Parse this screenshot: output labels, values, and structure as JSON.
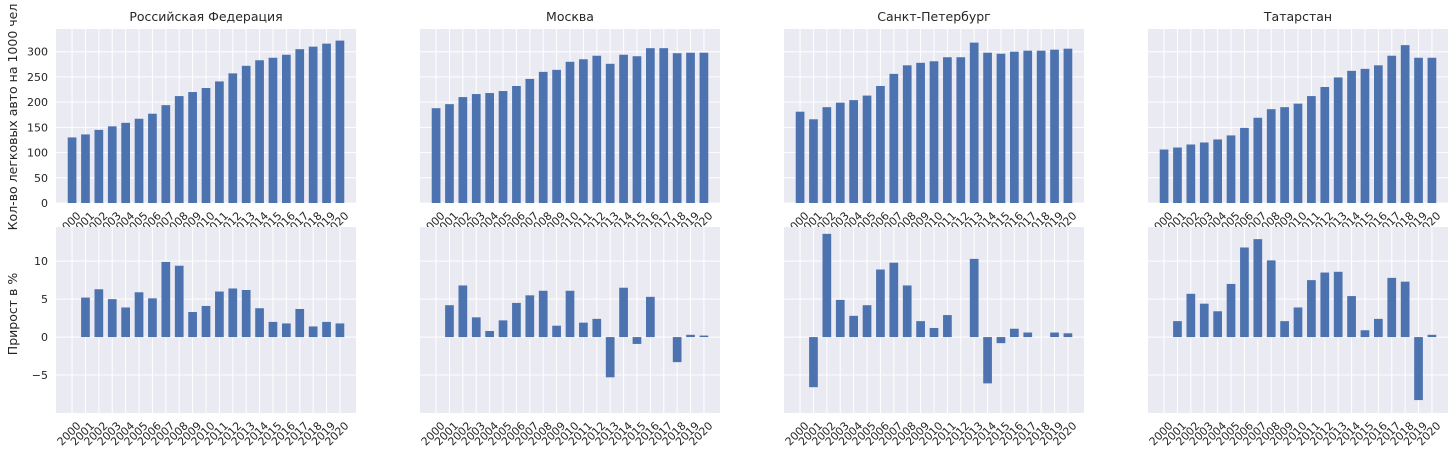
{
  "figure": {
    "ylabel_top": "Кол-во легковых авто на 1000 чел",
    "ylabel_bottom": "Прирост в %",
    "bar_color": "#4c72b0",
    "axes_bg": "#eaeaf2",
    "grid_color": "#ffffff"
  },
  "chart_data": [
    {
      "type": "bar",
      "title": "Российская Федерация",
      "categories": [
        "2000",
        "2001",
        "2002",
        "2003",
        "2004",
        "2005",
        "2006",
        "2007",
        "2008",
        "2009",
        "2010",
        "2011",
        "2012",
        "2013",
        "2014",
        "2015",
        "2016",
        "2017",
        "2018",
        "2019",
        "2020"
      ],
      "values": [
        130,
        136,
        145,
        152,
        159,
        167,
        177,
        194,
        212,
        220,
        228,
        241,
        257,
        272,
        283,
        288,
        294,
        305,
        310,
        316,
        322
      ],
      "ylim": [
        0,
        345
      ],
      "yticks": [
        0,
        50,
        100,
        150,
        200,
        250,
        300
      ]
    },
    {
      "type": "bar",
      "title": "Москва",
      "categories": [
        "2000",
        "2001",
        "2002",
        "2003",
        "2004",
        "2005",
        "2006",
        "2007",
        "2008",
        "2009",
        "2010",
        "2011",
        "2012",
        "2013",
        "2014",
        "2015",
        "2016",
        "2017",
        "2018",
        "2019",
        "2020"
      ],
      "values": [
        188,
        196,
        210,
        216,
        218,
        222,
        232,
        246,
        260,
        264,
        280,
        285,
        292,
        276,
        294,
        291,
        307,
        307,
        297,
        298,
        298
      ],
      "ylim": [
        0,
        345
      ],
      "yticks": [
        0,
        50,
        100,
        150,
        200,
        250,
        300
      ]
    },
    {
      "type": "bar",
      "title": "Санкт-Петербург",
      "categories": [
        "2000",
        "2001",
        "2002",
        "2003",
        "2004",
        "2005",
        "2006",
        "2007",
        "2008",
        "2009",
        "2010",
        "2011",
        "2012",
        "2013",
        "2014",
        "2015",
        "2016",
        "2017",
        "2018",
        "2019",
        "2020"
      ],
      "values": [
        181,
        166,
        190,
        199,
        204,
        213,
        232,
        256,
        273,
        278,
        281,
        289,
        289,
        318,
        298,
        296,
        300,
        302,
        302,
        304,
        306
      ],
      "ylim": [
        0,
        345
      ],
      "yticks": [
        0,
        50,
        100,
        150,
        200,
        250,
        300
      ]
    },
    {
      "type": "bar",
      "title": "Татарстан",
      "categories": [
        "2000",
        "2001",
        "2002",
        "2003",
        "2004",
        "2005",
        "2006",
        "2007",
        "2008",
        "2009",
        "2010",
        "2011",
        "2012",
        "2013",
        "2014",
        "2015",
        "2016",
        "2017",
        "2018",
        "2019",
        "2020"
      ],
      "values": [
        106,
        110,
        116,
        120,
        126,
        134,
        149,
        169,
        186,
        190,
        197,
        212,
        230,
        249,
        262,
        266,
        273,
        292,
        313,
        288,
        288
      ],
      "ylim": [
        0,
        345
      ],
      "yticks": [
        0,
        50,
        100,
        150,
        200,
        250,
        300
      ]
    },
    {
      "type": "bar",
      "title": "",
      "categories": [
        "2000",
        "2001",
        "2002",
        "2003",
        "2004",
        "2005",
        "2006",
        "2007",
        "2008",
        "2009",
        "2010",
        "2011",
        "2012",
        "2013",
        "2014",
        "2015",
        "2016",
        "2017",
        "2018",
        "2019",
        "2020"
      ],
      "values": [
        0,
        5.2,
        6.3,
        5.0,
        3.9,
        5.9,
        5.1,
        9.9,
        9.4,
        3.3,
        4.1,
        6.0,
        6.4,
        6.2,
        3.8,
        2.0,
        1.8,
        3.7,
        1.4,
        2.0,
        1.8
      ],
      "ylim": [
        -10,
        14.5
      ],
      "yticks": [
        -5,
        0,
        5,
        10
      ]
    },
    {
      "type": "bar",
      "title": "",
      "categories": [
        "2000",
        "2001",
        "2002",
        "2003",
        "2004",
        "2005",
        "2006",
        "2007",
        "2008",
        "2009",
        "2010",
        "2011",
        "2012",
        "2013",
        "2014",
        "2015",
        "2016",
        "2017",
        "2018",
        "2019",
        "2020"
      ],
      "values": [
        0,
        4.2,
        6.8,
        2.6,
        0.8,
        2.2,
        4.5,
        5.5,
        6.1,
        1.5,
        6.1,
        1.9,
        2.4,
        -5.3,
        6.5,
        -0.9,
        5.3,
        0,
        -3.3,
        0.3,
        0.2
      ],
      "ylim": [
        -10,
        14.5
      ],
      "yticks": [
        -5,
        0,
        5,
        10
      ]
    },
    {
      "type": "bar",
      "title": "",
      "categories": [
        "2000",
        "2001",
        "2002",
        "2003",
        "2004",
        "2005",
        "2006",
        "2007",
        "2008",
        "2009",
        "2010",
        "2011",
        "2012",
        "2013",
        "2014",
        "2015",
        "2016",
        "2017",
        "2018",
        "2019",
        "2020"
      ],
      "values": [
        0,
        -6.6,
        13.6,
        4.9,
        2.8,
        4.2,
        8.9,
        9.8,
        6.8,
        2.1,
        1.2,
        2.9,
        0,
        10.3,
        -6.1,
        -0.8,
        1.1,
        0.6,
        0,
        0.6,
        0.5
      ],
      "ylim": [
        -10,
        14.5
      ],
      "yticks": [
        -5,
        0,
        5,
        10
      ]
    },
    {
      "type": "bar",
      "title": "",
      "categories": [
        "2000",
        "2001",
        "2002",
        "2003",
        "2004",
        "2005",
        "2006",
        "2007",
        "2008",
        "2009",
        "2010",
        "2011",
        "2012",
        "2013",
        "2014",
        "2015",
        "2016",
        "2017",
        "2018",
        "2019",
        "2020"
      ],
      "values": [
        0,
        2.1,
        5.7,
        4.4,
        3.4,
        7.0,
        11.8,
        12.9,
        10.1,
        2.1,
        3.9,
        7.5,
        8.5,
        8.6,
        5.4,
        0.9,
        2.4,
        7.8,
        7.3,
        -8.3,
        0.3
      ],
      "ylim": [
        -10,
        14.5
      ],
      "yticks": [
        -5,
        0,
        5,
        10
      ]
    }
  ]
}
